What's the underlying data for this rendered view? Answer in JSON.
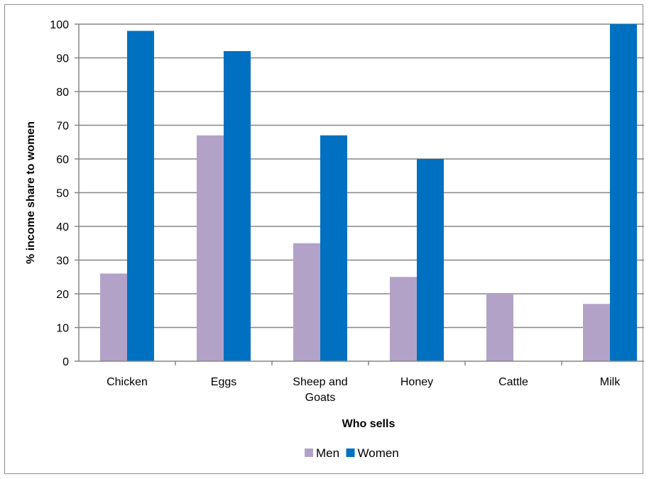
{
  "chart_data": {
    "type": "bar",
    "categories": [
      "Chicken",
      "Eggs",
      "Sheep and Goats",
      "Honey",
      "Cattle",
      "Milk"
    ],
    "category_lines": [
      [
        "Chicken"
      ],
      [
        "Eggs"
      ],
      [
        "Sheep and",
        "Goats"
      ],
      [
        "Honey"
      ],
      [
        "Cattle"
      ],
      [
        "Milk"
      ]
    ],
    "series": [
      {
        "name": "Men",
        "values": [
          26,
          67,
          35,
          25,
          20,
          17
        ],
        "color": "#b3a2c7"
      },
      {
        "name": "Women",
        "values": [
          98,
          92,
          67,
          60,
          0,
          100
        ],
        "color": "#0070c0"
      }
    ],
    "xlabel": "Who sells",
    "ylabel": "% income share to women",
    "ylim": [
      0,
      100
    ],
    "yticks": [
      "0",
      "10",
      "20",
      "30",
      "40",
      "50",
      "60",
      "70",
      "80",
      "90",
      "100"
    ],
    "grid": true,
    "legend_position": "bottom"
  }
}
